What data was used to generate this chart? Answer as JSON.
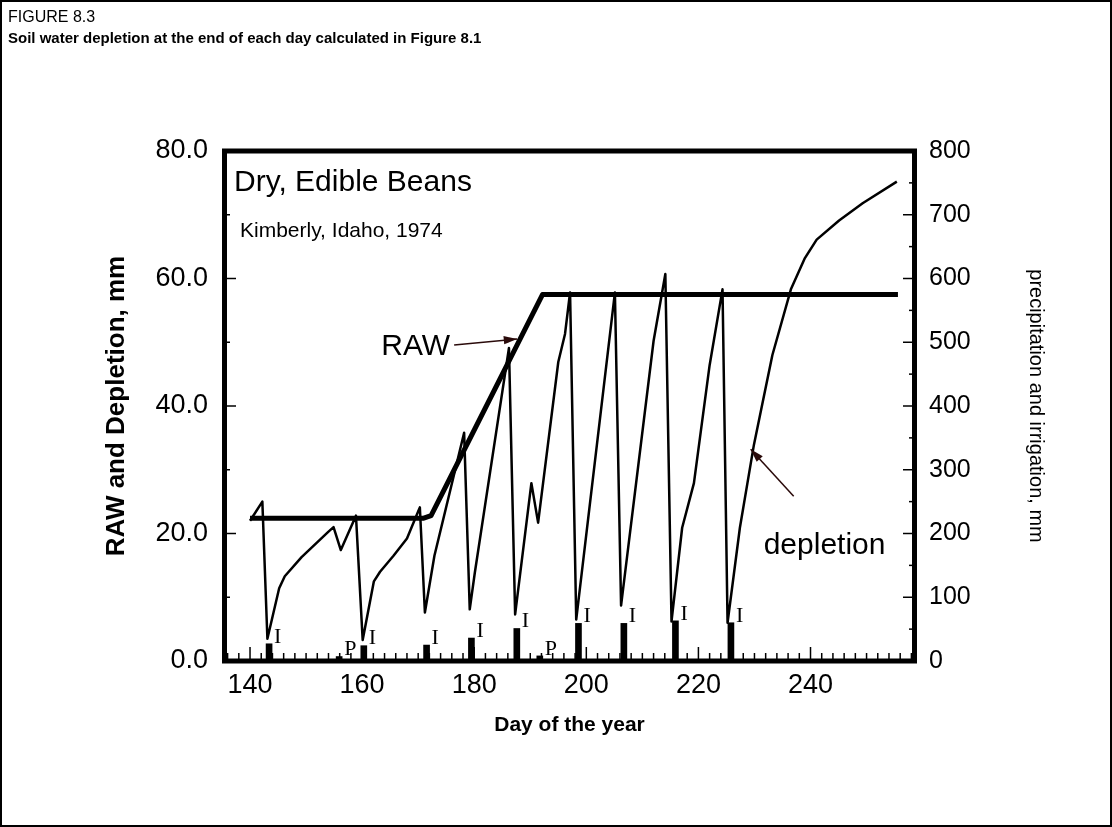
{
  "chart_data": {
    "type": "line",
    "title": "FIGURE 8.3",
    "subtitle": "Soil water depletion at the end of each day calculated in Figure 8.1",
    "xlabel": "Day of the year",
    "ylabel": "RAW and Depletion, mm",
    "y2label": "precipitation and irrigation, mm",
    "xlim": [
      136,
      258
    ],
    "ylim": [
      0,
      80
    ],
    "y2lim": [
      0,
      800
    ],
    "xticks": [
      {
        "value": 136,
        "label": null
      },
      {
        "value": 138,
        "label": null
      },
      140,
      {
        "value": 142,
        "label": null
      },
      {
        "value": 144,
        "label": null
      },
      {
        "value": 146,
        "label": null
      },
      {
        "value": 148,
        "label": null
      },
      {
        "value": 150,
        "label": null
      },
      {
        "value": 152,
        "label": null
      },
      {
        "value": 154,
        "label": null
      },
      {
        "value": 156,
        "label": null
      },
      {
        "value": 158,
        "label": null
      },
      160,
      {
        "value": 162,
        "label": null
      },
      {
        "value": 164,
        "label": null
      },
      {
        "value": 166,
        "label": null
      },
      {
        "value": 168,
        "label": null
      },
      {
        "value": 170,
        "label": null
      },
      {
        "value": 172,
        "label": null
      },
      {
        "value": 174,
        "label": null
      },
      {
        "value": 176,
        "label": null
      },
      {
        "value": 178,
        "label": null
      },
      180,
      {
        "value": 182,
        "label": null
      },
      {
        "value": 184,
        "label": null
      },
      {
        "value": 186,
        "label": null
      },
      {
        "value": 188,
        "label": null
      },
      {
        "value": 190,
        "label": null
      },
      {
        "value": 192,
        "label": null
      },
      {
        "value": 194,
        "label": null
      },
      {
        "value": 196,
        "label": null
      },
      {
        "value": 198,
        "label": null
      },
      200,
      {
        "value": 202,
        "label": null
      },
      {
        "value": 204,
        "label": null
      },
      {
        "value": 206,
        "label": null
      },
      {
        "value": 208,
        "label": null
      },
      {
        "value": 210,
        "label": null
      },
      {
        "value": 212,
        "label": null
      },
      {
        "value": 214,
        "label": null
      },
      {
        "value": 216,
        "label": null
      },
      {
        "value": 218,
        "label": null
      },
      220,
      {
        "value": 222,
        "label": null
      },
      {
        "value": 224,
        "label": null
      },
      {
        "value": 226,
        "label": null
      },
      {
        "value": 228,
        "label": null
      },
      {
        "value": 230,
        "label": null
      },
      {
        "value": 232,
        "label": null
      },
      {
        "value": 234,
        "label": null
      },
      {
        "value": 236,
        "label": null
      },
      {
        "value": 238,
        "label": null
      },
      240,
      {
        "value": 242,
        "label": null
      },
      {
        "value": 244,
        "label": null
      },
      {
        "value": 246,
        "label": null
      },
      {
        "value": 248,
        "label": null
      },
      {
        "value": 250,
        "label": null
      },
      {
        "value": 252,
        "label": null
      },
      {
        "value": 254,
        "label": null
      },
      {
        "value": 256,
        "label": null
      },
      {
        "value": 258,
        "label": null
      }
    ],
    "yticks": [
      {
        "value": 0,
        "label": "0.0"
      },
      {
        "value": 10,
        "label": null
      },
      {
        "value": 20,
        "label": "20.0"
      },
      {
        "value": 30,
        "label": null
      },
      {
        "value": 40,
        "label": "40.0"
      },
      {
        "value": 50,
        "label": null
      },
      {
        "value": 60,
        "label": "60.0"
      },
      {
        "value": 70,
        "label": null
      },
      {
        "value": 80,
        "label": "80.0"
      }
    ],
    "y2ticks": [
      0,
      {
        "value": 50,
        "label": null
      },
      100,
      {
        "value": 150,
        "label": null
      },
      200,
      {
        "value": 250,
        "label": null
      },
      300,
      {
        "value": 350,
        "label": null
      },
      400,
      {
        "value": 450,
        "label": null
      },
      500,
      {
        "value": 550,
        "label": null
      },
      600,
      {
        "value": 650,
        "label": null
      },
      700,
      {
        "value": 750,
        "label": null
      },
      800
    ],
    "grid": false,
    "legend": false,
    "marker": "none",
    "line_style": "solid",
    "series": [
      {
        "name": "RAW",
        "color": "#000000",
        "x": [
          140,
          171,
          172.3,
          192.2,
          255.6
        ],
        "values": [
          22.4,
          22.4,
          22.8,
          57.5,
          57.5
        ]
      },
      {
        "name": "depletion",
        "color": "#000000",
        "x": [
          140,
          142.2,
          143.1,
          145.2,
          146.2,
          149.2,
          154,
          154.9,
          156.2,
          158.9,
          160.1,
          162.1,
          163.2,
          165.6,
          168,
          170.3,
          171.2,
          172.9,
          178.2,
          179.2,
          180.1,
          186.2,
          187.3,
          190.2,
          191.4,
          195,
          196.2,
          197.1,
          198.2,
          205.1,
          206.2,
          212,
          214.1,
          215.2,
          217.1,
          219.2,
          222,
          224.3,
          225.2,
          227.4,
          229.9,
          233.2,
          236.5,
          239,
          241.1,
          245.1,
          249.3,
          255.4
        ],
        "values": [
          22,
          25,
          3.5,
          11.4,
          13.3,
          16.3,
          20.3,
          21,
          17.4,
          22.8,
          3.3,
          12.5,
          14,
          16.5,
          19.2,
          24.1,
          7.6,
          16.5,
          35.8,
          8.1,
          13.8,
          49.1,
          7.3,
          27.9,
          21.7,
          46.9,
          51.3,
          57.8,
          6.5,
          57.8,
          8.7,
          50.2,
          60.7,
          6.2,
          20.9,
          27.9,
          46.4,
          58.3,
          6,
          20.9,
          33.9,
          48,
          58.3,
          63.2,
          66.1,
          69.1,
          71.8,
          75.2
        ]
      },
      {
        "type": "bar",
        "axis": "y2",
        "color": "#000000",
        "x": [
          143.4,
          155.9,
          160.3,
          171.5,
          179.5,
          187.6,
          191.7,
          198.6,
          206.7,
          215.9,
          225.8
        ],
        "values": [
          27,
          7,
          24,
          25,
          36,
          51,
          8,
          59,
          59,
          63,
          60
        ],
        "value_labels": [
          "I",
          "P",
          "I",
          "I",
          "I",
          "I",
          "P",
          "I",
          "I",
          "I",
          "I"
        ]
      }
    ],
    "annotations": [
      "Dry, Edible Beans",
      "Kimberly, Idaho, 1974"
    ]
  }
}
